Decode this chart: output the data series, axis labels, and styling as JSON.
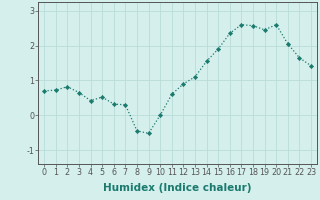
{
  "x": [
    0,
    1,
    2,
    3,
    4,
    5,
    6,
    7,
    8,
    9,
    10,
    11,
    12,
    13,
    14,
    15,
    16,
    17,
    18,
    19,
    20,
    21,
    22,
    23
  ],
  "y": [
    0.7,
    0.72,
    0.82,
    0.65,
    0.42,
    0.52,
    0.32,
    0.3,
    -0.45,
    -0.52,
    0.0,
    0.6,
    0.9,
    1.1,
    1.55,
    1.9,
    2.35,
    2.6,
    2.57,
    2.45,
    2.6,
    2.05,
    1.65,
    1.42
  ],
  "xlabel": "Humidex (Indice chaleur)",
  "xlim": [
    -0.5,
    23.5
  ],
  "ylim": [
    -1.4,
    3.25
  ],
  "yticks": [
    -1,
    0,
    1,
    2,
    3
  ],
  "xticks": [
    0,
    1,
    2,
    3,
    4,
    5,
    6,
    7,
    8,
    9,
    10,
    11,
    12,
    13,
    14,
    15,
    16,
    17,
    18,
    19,
    20,
    21,
    22,
    23
  ],
  "line_color": "#1a7a6e",
  "marker_color": "#1a7a6e",
  "bg_color": "#d4efec",
  "grid_color": "#b8ddd9",
  "axis_color": "#555555",
  "tick_label_fontsize": 5.8,
  "xlabel_fontsize": 7.5
}
